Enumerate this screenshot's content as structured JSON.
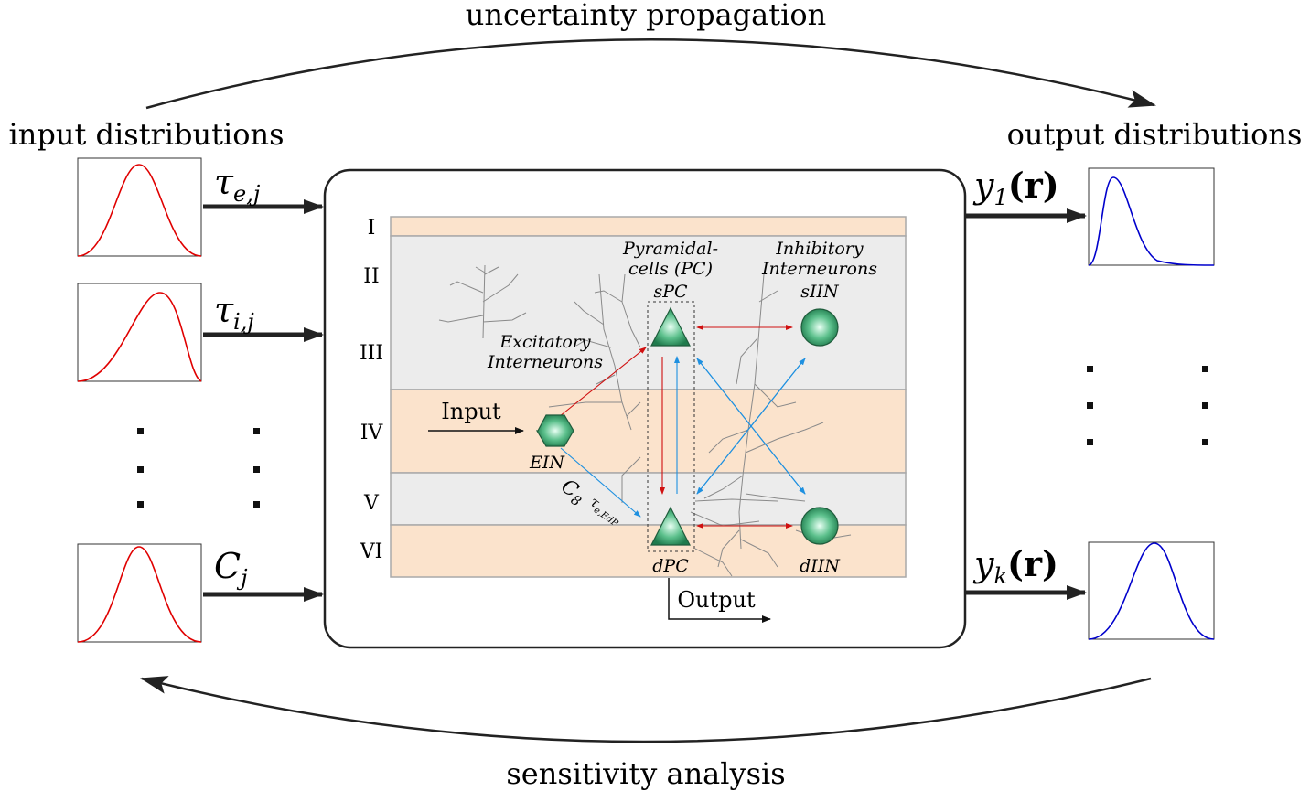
{
  "top_label": "uncertainty propagation",
  "bottom_label": "sensitivity analysis",
  "input_header": "input distributions",
  "output_header": "output distributions",
  "inputs": [
    {
      "symbol": "τ",
      "sub": "e,j"
    },
    {
      "symbol": "τ",
      "sub": "i,j"
    },
    {
      "symbol": "C",
      "sub": "j"
    }
  ],
  "outputs": [
    {
      "symbol": "y",
      "sub": "1",
      "arg": "(r)"
    },
    {
      "symbol": "y",
      "sub": "k",
      "arg": "(r)"
    }
  ],
  "layers": [
    "I",
    "II",
    "III",
    "IV",
    "V",
    "VI"
  ],
  "model": {
    "pyramidal": [
      "Pyramidal-",
      "cells (PC)"
    ],
    "inhibitory": [
      "Inhibitory",
      "Interneurons"
    ],
    "excitatory": [
      "Excitatory",
      "Interneurons"
    ],
    "spc": "sPC",
    "siin": "sIIN",
    "ein": "EIN",
    "dpc": "dPC",
    "diin": "dIIN",
    "input": "Input",
    "output": "Output",
    "c8_symbol": "C",
    "c8_sub": "8",
    "tau_symbol": "τ",
    "tau_sub": "e,EdP"
  },
  "colors": {
    "input_curve": "#e00000",
    "output_curve": "#0000cc",
    "layer_orange": "#fbe3cc",
    "layer_gray": "#ececec",
    "red_arrow": "#d01010",
    "blue_arrow": "#1e90e0",
    "cell_green": "#2f9e68"
  }
}
